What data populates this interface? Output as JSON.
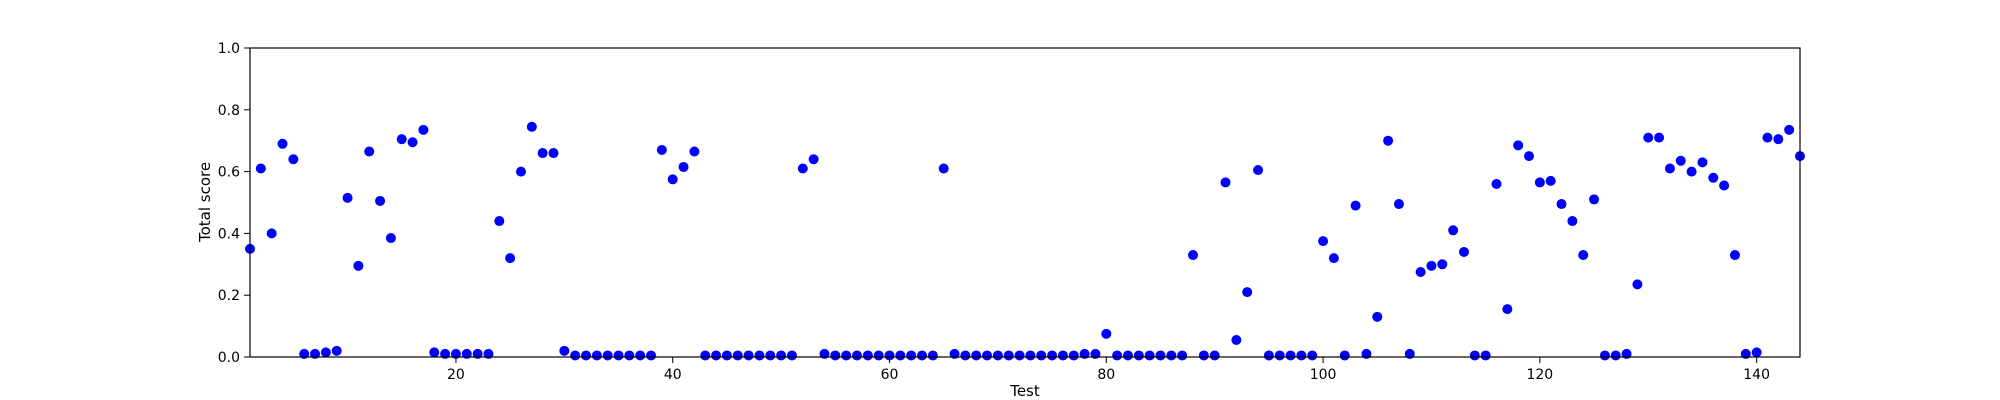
{
  "chart_data": {
    "type": "scatter",
    "title": "",
    "xlabel": "Test",
    "ylabel": "Total score",
    "xlim": [
      1,
      144
    ],
    "ylim": [
      0.0,
      1.0
    ],
    "xticks": [
      20,
      40,
      60,
      80,
      100,
      120,
      140
    ],
    "yticks": [
      0.0,
      0.2,
      0.4,
      0.6,
      0.8,
      1.0
    ],
    "xtick_labels": [
      "20",
      "40",
      "60",
      "80",
      "100",
      "120",
      "140"
    ],
    "ytick_labels": [
      "0.0",
      "0.2",
      "0.4",
      "0.6",
      "0.8",
      "1.0"
    ],
    "grid": false,
    "marker_color": "#0000ff",
    "series": [
      {
        "x": [
          1,
          2,
          3,
          4,
          5,
          6,
          7,
          8,
          9,
          10,
          11,
          12,
          13,
          14,
          15,
          16,
          17,
          18,
          19,
          20,
          21,
          22,
          23,
          24,
          25,
          26,
          27,
          28,
          29,
          30,
          31,
          32,
          33,
          34,
          35,
          36,
          37,
          38,
          39,
          40,
          41,
          42,
          43,
          44,
          45,
          46,
          47,
          48,
          49,
          50,
          51,
          52,
          53,
          54,
          55,
          56,
          57,
          58,
          59,
          60,
          61,
          62,
          63,
          64,
          65,
          66,
          67,
          68,
          69,
          70,
          71,
          72,
          73,
          74,
          75,
          76,
          77,
          78,
          79,
          80,
          81,
          82,
          83,
          84,
          85,
          86,
          87,
          88,
          89,
          90,
          91,
          92,
          93,
          94,
          95,
          96,
          97,
          98,
          99,
          100,
          101,
          102,
          103,
          104,
          105,
          106,
          107,
          108,
          109,
          110,
          111,
          112,
          113,
          114,
          115,
          116,
          117,
          118,
          119,
          120,
          121,
          122,
          123,
          124,
          125,
          126,
          127,
          128,
          129,
          130,
          131,
          132,
          133,
          134,
          135,
          136,
          137,
          138,
          139,
          140,
          141,
          142,
          143,
          144
        ],
        "y": [
          0.35,
          0.61,
          0.4,
          0.69,
          0.64,
          0.01,
          0.01,
          0.015,
          0.02,
          0.515,
          0.295,
          0.665,
          0.505,
          0.385,
          0.705,
          0.695,
          0.735,
          0.015,
          0.01,
          0.01,
          0.01,
          0.01,
          0.01,
          0.44,
          0.32,
          0.6,
          0.745,
          0.66,
          0.66,
          0.02,
          0.005,
          0.005,
          0.005,
          0.005,
          0.005,
          0.005,
          0.005,
          0.005,
          0.67,
          0.575,
          0.615,
          0.665,
          0.005,
          0.005,
          0.005,
          0.005,
          0.005,
          0.005,
          0.005,
          0.005,
          0.005,
          0.61,
          0.64,
          0.01,
          0.005,
          0.005,
          0.005,
          0.005,
          0.005,
          0.005,
          0.005,
          0.005,
          0.005,
          0.005,
          0.61,
          0.01,
          0.005,
          0.005,
          0.005,
          0.005,
          0.005,
          0.005,
          0.005,
          0.005,
          0.005,
          0.005,
          0.005,
          0.01,
          0.01,
          0.075,
          0.005,
          0.005,
          0.005,
          0.005,
          0.005,
          0.005,
          0.005,
          0.33,
          0.005,
          0.005,
          0.565,
          0.055,
          0.21,
          0.605,
          0.005,
          0.005,
          0.005,
          0.005,
          0.005,
          0.375,
          0.32,
          0.005,
          0.49,
          0.01,
          0.13,
          0.7,
          0.495,
          0.01,
          0.275,
          0.295,
          0.3,
          0.41,
          0.34,
          0.005,
          0.005,
          0.56,
          0.155,
          0.685,
          0.65,
          0.565,
          0.57,
          0.495,
          0.44,
          0.33,
          0.51,
          0.005,
          0.005,
          0.01,
          0.235,
          0.71,
          0.71,
          0.61,
          0.635,
          0.6,
          0.63,
          0.58,
          0.555,
          0.33,
          0.01,
          0.015,
          0.71,
          0.705,
          0.735,
          0.65
        ]
      }
    ]
  }
}
